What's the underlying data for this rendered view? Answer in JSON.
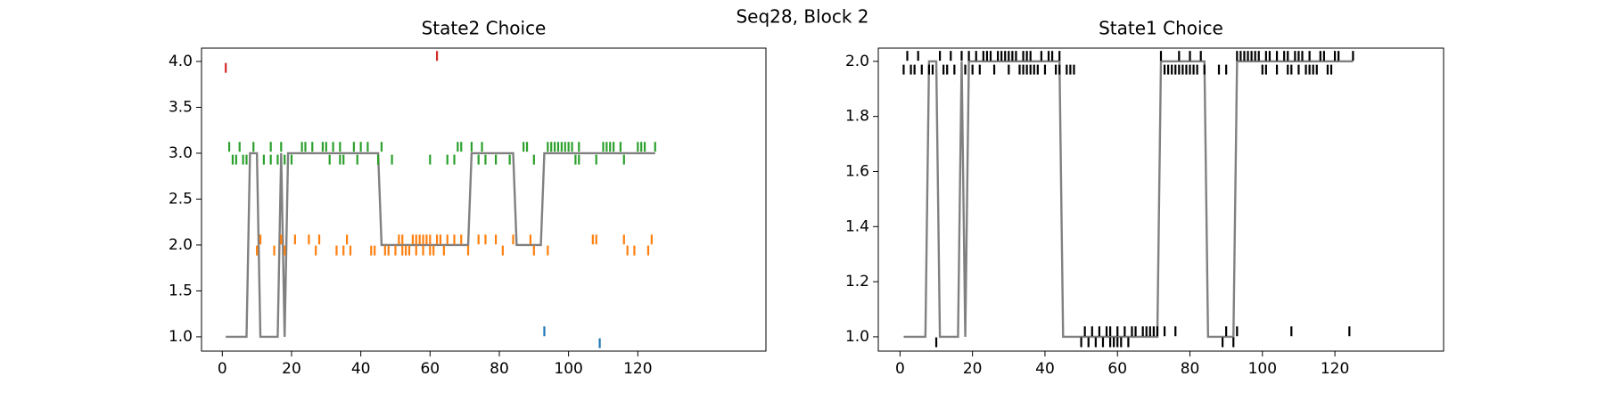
{
  "figure_title": "Seq28, Block 2",
  "chart_data": [
    {
      "type": "line",
      "title": "State2 Choice",
      "xlim": [
        -6,
        157
      ],
      "ylim": [
        0.844,
        4.145
      ],
      "xticks": [
        0,
        20,
        40,
        60,
        80,
        100,
        120
      ],
      "yticks": [
        {
          "value": 1,
          "label": "1.0"
        },
        1.5,
        {
          "value": 2,
          "label": "2.0"
        },
        2.5,
        {
          "value": 3,
          "label": "3.0"
        },
        3.5,
        {
          "value": 4,
          "label": "4.0"
        }
      ],
      "series": [
        {
          "color": "#808080",
          "x": [
            1,
            7,
            8,
            10,
            11,
            16,
            17,
            18,
            19,
            45,
            46,
            71,
            72,
            84,
            85,
            92,
            93,
            125
          ],
          "y": [
            1,
            1,
            3,
            3,
            1,
            1,
            3,
            1,
            3,
            3,
            2,
            2,
            3,
            3,
            2,
            2,
            3,
            3
          ]
        },
        {
          "color": "#2ca02c",
          "marker": "|",
          "x": [
            2,
            5,
            9,
            14,
            17,
            23,
            24,
            26,
            29,
            30,
            32,
            34,
            38,
            40,
            42,
            46,
            68,
            69,
            72,
            75,
            87,
            88,
            94,
            95,
            96,
            97,
            98,
            99,
            100,
            101,
            103,
            110,
            111,
            112,
            113,
            115,
            120,
            121,
            122,
            125
          ],
          "y": [
            3.07,
            3.07,
            3.07,
            3.07,
            3.07,
            3.07,
            3.07,
            3.07,
            3.07,
            3.07,
            3.07,
            3.07,
            3.07,
            3.07,
            3.07,
            3.07,
            3.07,
            3.07,
            3.07,
            3.07,
            3.07,
            3.07,
            3.07,
            3.07,
            3.07,
            3.07,
            3.07,
            3.07,
            3.07,
            3.07,
            3.07,
            3.07,
            3.07,
            3.07,
            3.07,
            3.07,
            3.07,
            3.07,
            3.07,
            3.07
          ]
        },
        {
          "color": "#2ca02c",
          "marker": "|",
          "x": [
            3,
            4,
            6,
            7,
            12,
            14,
            16,
            18,
            20,
            31,
            34,
            35,
            39,
            45,
            49,
            60,
            65,
            67,
            74,
            76,
            79,
            83,
            90,
            102,
            103,
            108,
            116
          ],
          "y": [
            2.93,
            2.93,
            2.93,
            2.93,
            2.93,
            2.93,
            2.93,
            2.93,
            2.93,
            2.93,
            2.93,
            2.93,
            2.93,
            2.93,
            2.93,
            2.93,
            2.93,
            2.93,
            2.93,
            2.93,
            2.93,
            2.93,
            2.93,
            2.93,
            2.93,
            2.93,
            2.93
          ]
        },
        {
          "color": "#ff7f0e",
          "marker": "|",
          "x": [
            11,
            17,
            21,
            25,
            28,
            36,
            51,
            52,
            55,
            56,
            57,
            58,
            59,
            60,
            62,
            63,
            65,
            67,
            69,
            74,
            76,
            79,
            84,
            89,
            107,
            108,
            116,
            124
          ],
          "y": [
            2.06,
            2.06,
            2.06,
            2.06,
            2.06,
            2.06,
            2.06,
            2.06,
            2.06,
            2.06,
            2.06,
            2.06,
            2.06,
            2.06,
            2.06,
            2.06,
            2.06,
            2.06,
            2.06,
            2.06,
            2.06,
            2.06,
            2.06,
            2.06,
            2.06,
            2.06,
            2.06,
            2.06
          ]
        },
        {
          "color": "#ff7f0e",
          "marker": "|",
          "x": [
            10,
            15,
            18,
            27,
            33,
            35,
            37,
            43,
            44,
            47,
            48,
            50,
            52,
            53,
            54,
            56,
            58,
            60,
            61,
            64,
            71,
            81,
            90,
            94,
            117,
            119,
            123
          ],
          "y": [
            1.94,
            1.94,
            1.94,
            1.94,
            1.94,
            1.94,
            1.94,
            1.94,
            1.94,
            1.94,
            1.94,
            1.94,
            1.94,
            1.94,
            1.94,
            1.94,
            1.94,
            1.94,
            1.94,
            1.94,
            1.94,
            1.94,
            1.94,
            1.94,
            1.94,
            1.94,
            1.94
          ]
        },
        {
          "color": "#d62728",
          "marker": "|",
          "x": [
            1,
            62
          ],
          "y": [
            3.93,
            4.06
          ]
        },
        {
          "color": "#1f77b4",
          "marker": "|",
          "x": [
            93,
            109
          ],
          "y": [
            1.06,
            0.93
          ]
        }
      ]
    },
    {
      "type": "line",
      "title": "State1 Choice",
      "xlim": [
        -6,
        150
      ],
      "ylim": [
        0.948,
        2.048
      ],
      "xticks": [
        0,
        20,
        40,
        60,
        80,
        100,
        120
      ],
      "yticks": [
        {
          "value": 1,
          "label": "1.0"
        },
        1.2,
        1.4,
        1.6,
        1.8,
        {
          "value": 2,
          "label": "2.0"
        }
      ],
      "series": [
        {
          "color": "#808080",
          "x": [
            1,
            7,
            8,
            10,
            11,
            16,
            17,
            18,
            19,
            44,
            45,
            71,
            72,
            84,
            85,
            92,
            93,
            125
          ],
          "y": [
            1,
            1,
            2,
            2,
            1,
            1,
            2,
            1,
            2,
            2,
            1,
            1,
            2,
            2,
            1,
            1,
            2,
            2
          ]
        },
        {
          "color": "#000000",
          "marker": "|",
          "x": [
            2,
            5,
            11,
            14,
            17,
            19,
            21,
            23,
            24,
            25,
            27,
            28,
            29,
            30,
            31,
            32,
            34,
            35,
            36,
            39,
            41,
            42,
            44,
            72,
            77,
            80,
            83,
            93,
            94,
            95,
            96,
            97,
            98,
            99,
            101,
            102,
            104,
            106,
            107,
            109,
            110,
            111,
            113,
            116,
            117,
            120,
            121,
            125
          ],
          "y": [
            2.02,
            2.02,
            2.02,
            2.02,
            2.02,
            2.02,
            2.02,
            2.02,
            2.02,
            2.02,
            2.02,
            2.02,
            2.02,
            2.02,
            2.02,
            2.02,
            2.02,
            2.02,
            2.02,
            2.02,
            2.02,
            2.02,
            2.02,
            2.02,
            2.02,
            2.02,
            2.02,
            2.02,
            2.02,
            2.02,
            2.02,
            2.02,
            2.02,
            2.02,
            2.02,
            2.02,
            2.02,
            2.02,
            2.02,
            2.02,
            2.02,
            2.02,
            2.02,
            2.02,
            2.02,
            2.02,
            2.02,
            2.02
          ]
        },
        {
          "color": "#000000",
          "marker": "|",
          "x": [
            1,
            3,
            4,
            6,
            8,
            9,
            12,
            13,
            15,
            18,
            20,
            22,
            26,
            30,
            33,
            34,
            35,
            36,
            37,
            38,
            40,
            43,
            44,
            46,
            47,
            48,
            73,
            74,
            75,
            76,
            77,
            78,
            79,
            80,
            81,
            82,
            84,
            88,
            90,
            100,
            101,
            104,
            107,
            108,
            110,
            112,
            113,
            114,
            115,
            118,
            119
          ],
          "y": [
            1.97,
            1.97,
            1.97,
            1.97,
            1.97,
            1.97,
            1.97,
            1.97,
            1.97,
            1.97,
            1.97,
            1.97,
            1.97,
            1.97,
            1.97,
            1.97,
            1.97,
            1.97,
            1.97,
            1.97,
            1.97,
            1.97,
            1.97,
            1.97,
            1.97,
            1.97,
            1.97,
            1.97,
            1.97,
            1.97,
            1.97,
            1.97,
            1.97,
            1.97,
            1.97,
            1.97,
            1.97,
            1.97,
            1.97,
            1.97,
            1.97,
            1.97,
            1.97,
            1.97,
            1.97,
            1.97,
            1.97,
            1.97,
            1.97,
            1.97,
            1.97
          ]
        },
        {
          "color": "#000000",
          "marker": "|",
          "x": [
            51,
            53,
            55,
            57,
            58,
            60,
            62,
            64,
            65,
            67,
            68,
            69,
            70,
            71,
            73,
            76,
            90,
            93,
            108,
            124
          ],
          "y": [
            1.02,
            1.02,
            1.02,
            1.02,
            1.02,
            1.02,
            1.02,
            1.02,
            1.02,
            1.02,
            1.02,
            1.02,
            1.02,
            1.02,
            1.02,
            1.02,
            1.02,
            1.02,
            1.02,
            1.02
          ]
        },
        {
          "color": "#000000",
          "marker": "|",
          "x": [
            10,
            50,
            52,
            54,
            56,
            58,
            59,
            60,
            61,
            63,
            89,
            92
          ],
          "y": [
            0.98,
            0.98,
            0.98,
            0.98,
            0.98,
            0.98,
            0.98,
            0.98,
            0.98,
            0.98,
            0.98,
            0.98
          ]
        }
      ]
    }
  ]
}
